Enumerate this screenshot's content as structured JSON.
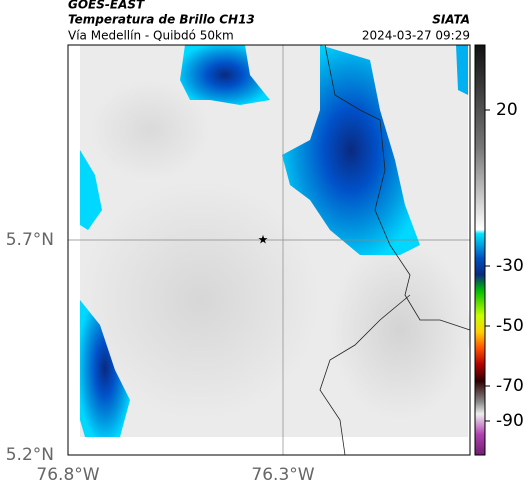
{
  "header": {
    "source": "GOES-EAST",
    "title": "Temperatura de Brillo CH13",
    "subtitle": "Vía Medellín - Quibdó 50km",
    "agency": "SIATA",
    "datetime": "2024-03-27 09:29"
  },
  "map": {
    "lat_labels": [
      "5.7°N",
      "5.2°N"
    ],
    "lon_labels": [
      "76.8°W",
      "76.3°W"
    ]
  },
  "colorbar": {
    "ticks": [
      20,
      -30,
      -50,
      -70,
      -90
    ]
  }
}
